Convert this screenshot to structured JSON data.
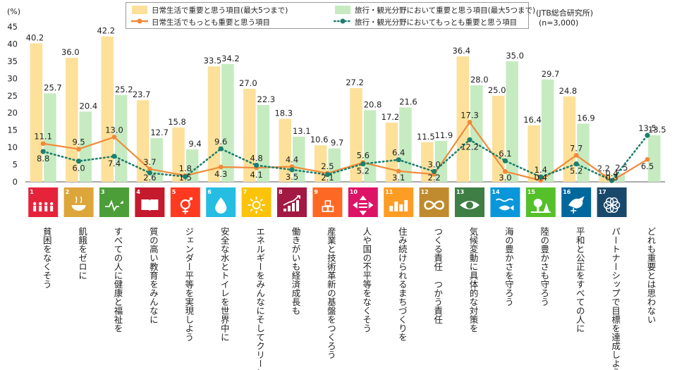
{
  "chart_data": {
    "type": "bar",
    "y_unit_label": "(%)",
    "ylim": [
      0,
      45
    ],
    "yticks": [
      0,
      5,
      10,
      15,
      20,
      25,
      30,
      35,
      40,
      45
    ],
    "grid": false,
    "legend_position": "top",
    "source_note": "(JTB総合研究所)",
    "sample_note": "(n=3,000)",
    "categories": [
      "貧困をなくそう",
      "飢餓をゼロに",
      "すべての人に健康と福祉を",
      "質の高い教育をみんなに",
      "ジェンダー平等を実現しよう",
      "安全な水とトイレを世界中に",
      "エネルギーをみんなにそしてクリーンに",
      "働きがいも経済成長も",
      "産業と技術革新の基盤をつくろう",
      "人や国の不平等をなくそう",
      "住み続けられるまちづくりを",
      "つくる責任　つかう責任",
      "気候変動に具体的な対策を",
      "海の豊かさを守ろう",
      "陸の豊かさも守ろう",
      "平和と公正をすべての人に",
      "パートナーシップで目標を達成しよう",
      "どれも重要とは思わない"
    ],
    "sdg_numbers": [
      "1",
      "2",
      "3",
      "4",
      "5",
      "6",
      "7",
      "8",
      "9",
      "10",
      "11",
      "12",
      "13",
      "14",
      "15",
      "16",
      "17",
      ""
    ],
    "sdg_colors": [
      "#e5243b",
      "#dda63a",
      "#4c9f38",
      "#c5192d",
      "#ff3a21",
      "#26bde2",
      "#fcc30b",
      "#a21942",
      "#fd6925",
      "#dd1367",
      "#fd9d24",
      "#bf8b2e",
      "#3f7e44",
      "#0a97d9",
      "#56c02b",
      "#00689d",
      "#19486a",
      ""
    ],
    "sdg_icons": [
      "people-icon",
      "bowl-icon",
      "heartbeat-icon",
      "book-icon",
      "gender-icon",
      "water-drop-icon",
      "sun-icon",
      "growth-chart-icon",
      "cubes-icon",
      "equal-arrows-icon",
      "buildings-icon",
      "infinity-icon",
      "eye-globe-icon",
      "fish-icon",
      "tree-icon",
      "dove-icon",
      "flower-rings-icon",
      ""
    ],
    "series": [
      {
        "name": "日常生活で重要と思う項目(最大5つまで)",
        "kind": "bar",
        "color": "#fde19a",
        "values": [
          40.2,
          36.0,
          42.2,
          23.7,
          15.8,
          33.5,
          27.0,
          18.3,
          10.6,
          27.2,
          17.2,
          11.5,
          36.4,
          25.0,
          16.4,
          24.8,
          2.2,
          null
        ]
      },
      {
        "name": "旅行・観光分野において重要と思う項目(最大5つまで)",
        "kind": "bar",
        "color": "#c6ebc1",
        "values": [
          25.7,
          20.4,
          25.2,
          12.7,
          9.4,
          34.2,
          22.3,
          13.1,
          9.7,
          20.8,
          21.6,
          11.9,
          28.0,
          35.0,
          29.7,
          16.9,
          2.5,
          13.5
        ]
      },
      {
        "name": "日常生活でもっとも重要と思う項目",
        "kind": "line",
        "color": "#f08a3a",
        "values": [
          11.1,
          9.5,
          13.0,
          3.7,
          1.8,
          4.3,
          4.1,
          4.4,
          2.5,
          5.6,
          3.1,
          2.2,
          17.3,
          3.0,
          0.4,
          7.7,
          0.3,
          6.5
        ]
      },
      {
        "name": "旅行・観光分野においてもっとも重要と思う項目",
        "kind": "dotted-line",
        "color": "#1d7f6e",
        "values": [
          8.8,
          6.0,
          7.4,
          2.6,
          1.5,
          9.6,
          4.8,
          3.5,
          2.1,
          5.2,
          6.4,
          3.0,
          12.2,
          6.1,
          1.4,
          5.2,
          0.4,
          13.5
        ]
      }
    ],
    "label_texts": {
      "bar_a": [
        "40.2",
        "36.0",
        "42.2",
        "23.7",
        "15.8",
        "33.5",
        "27.0",
        "18.3",
        "10.6",
        "27.2",
        "17.2",
        "11.5",
        "36.4",
        "25.0",
        "16.4",
        "24.8",
        "2.2",
        ""
      ],
      "bar_b": [
        "25.7",
        "20.4",
        "25.2",
        "12.7",
        "9.4",
        "34.2",
        "22.3",
        "13.1",
        "9.7",
        "20.8",
        "21.6",
        "11.9",
        "28.0",
        "35.0",
        "29.7",
        "16.9",
        "2.5",
        "13.5"
      ],
      "line_a": [
        "11.1",
        "9.5",
        "13.0",
        "3.7",
        "1.8",
        "4.3",
        "4.1",
        "4.4",
        "2.5",
        "5.6",
        "3.1",
        "2.2",
        "17.3",
        "3.0",
        "0.4",
        "7.7",
        "0.3",
        "6.5"
      ],
      "line_b": [
        "8.8",
        "6.0",
        "7.4",
        "2.6",
        "1.5",
        "9.6",
        "4.8",
        "3.5",
        "2.1",
        "5.2",
        "6.4",
        "3.0",
        "12.2",
        "6.1",
        "1.4",
        "5.2",
        "0.4",
        "13.5"
      ]
    }
  }
}
